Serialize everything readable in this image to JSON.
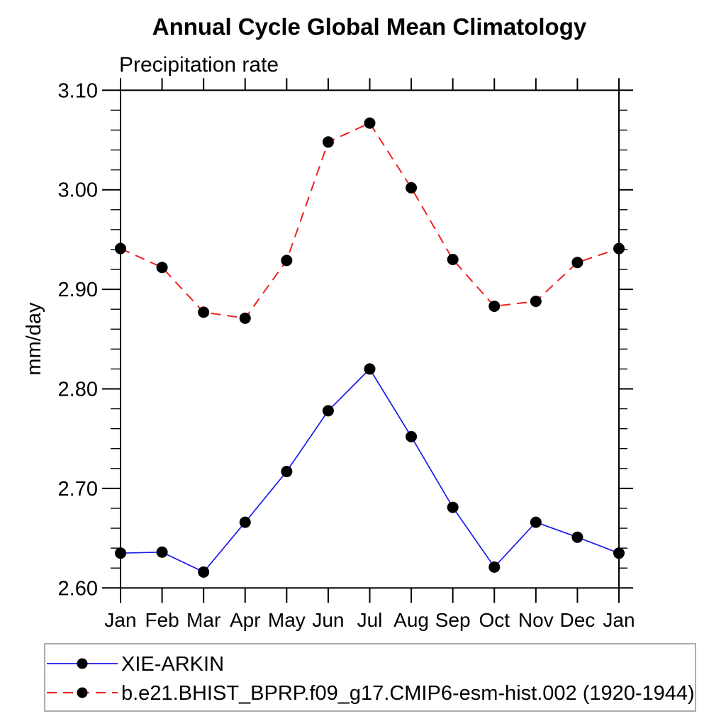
{
  "page": {
    "title": "Annual Cycle Global Mean Climatology",
    "subtitle": "Precipitation rate",
    "ylabel": "mm/day"
  },
  "legend": {
    "border_color": "#909090",
    "background": "#ffffff"
  },
  "chart_data": {
    "type": "line",
    "title": "Annual Cycle Global Mean Climatology",
    "subtitle": "Precipitation rate",
    "xlabel": "",
    "ylabel": "mm/day",
    "categories": [
      "Jan",
      "Feb",
      "Mar",
      "Apr",
      "May",
      "Jun",
      "Jul",
      "Aug",
      "Sep",
      "Oct",
      "Nov",
      "Dec",
      "Jan"
    ],
    "ylim": [
      2.6,
      3.1
    ],
    "y_major_tick_step": 0.1,
    "y_minor_tick_step": 0.02,
    "y_tick_labels": [
      "2.60",
      "2.70",
      "2.80",
      "2.90",
      "3.00",
      "3.10"
    ],
    "grid": false,
    "legend_position": "bottom-left",
    "frame_color": "#000000",
    "marker_color": "#000000",
    "series": [
      {
        "name": "XIE-ARKIN",
        "color": "#1a1aee",
        "line_style": "solid",
        "marker": "filled-circle",
        "values": [
          2.635,
          2.636,
          2.616,
          2.666,
          2.717,
          2.778,
          2.82,
          2.752,
          2.681,
          2.621,
          2.666,
          2.651,
          2.635
        ]
      },
      {
        "name": "b.e21.BHIST_BPRP.f09_g17.CMIP6-esm-hist.002 (1920-1944)",
        "color": "#ee2222",
        "line_style": "dashed",
        "marker": "filled-circle",
        "values": [
          2.941,
          2.922,
          2.877,
          2.871,
          2.929,
          3.048,
          3.067,
          3.002,
          2.93,
          2.883,
          2.888,
          2.927,
          2.941
        ]
      }
    ]
  }
}
